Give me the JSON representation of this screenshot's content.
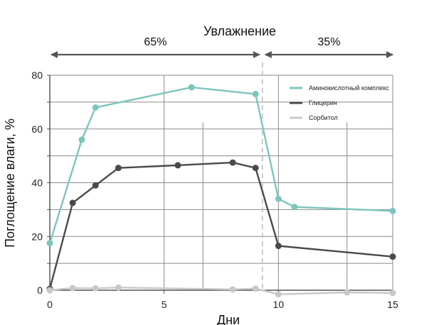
{
  "chart_data": {
    "type": "line",
    "title": "Увлажнение",
    "xlabel": "Дни",
    "ylabel": "Поглощение влаги, %",
    "xlim": [
      0,
      15
    ],
    "ylim": [
      0,
      80
    ],
    "xticks": [
      "0",
      "5",
      "10",
      "15"
    ],
    "yticks": [
      "0",
      "20",
      "40",
      "60",
      "80"
    ],
    "grid": true,
    "legend_position": "top-right",
    "phases": [
      {
        "label": "65%",
        "x_range": [
          0,
          9.3
        ]
      },
      {
        "label": "35%",
        "x_range": [
          9.3,
          15
        ]
      }
    ],
    "phase_boundary_x": 9.3,
    "series": [
      {
        "name": "Аминокислотный комплекс",
        "color": "#7cc6be",
        "x": [
          0,
          1.4,
          2,
          6.2,
          9,
          10,
          10.7,
          15
        ],
        "y": [
          17.5,
          56,
          68,
          75.5,
          73,
          34,
          31,
          29.5
        ]
      },
      {
        "name": "Глицерин",
        "color": "#4a4a4a",
        "x": [
          0,
          1,
          2,
          3,
          5.6,
          8,
          9,
          10,
          15
        ],
        "y": [
          0.5,
          32.5,
          39,
          45.5,
          46.5,
          47.5,
          45.5,
          16.5,
          12.5
        ]
      },
      {
        "name": "Сорбитол",
        "color": "#c8c8c8",
        "x": [
          0,
          1,
          2,
          3,
          8,
          9,
          10,
          13,
          15
        ],
        "y": [
          0,
          0.8,
          0.7,
          1,
          0.3,
          0.6,
          -1.5,
          -0.8,
          -1
        ]
      }
    ]
  }
}
